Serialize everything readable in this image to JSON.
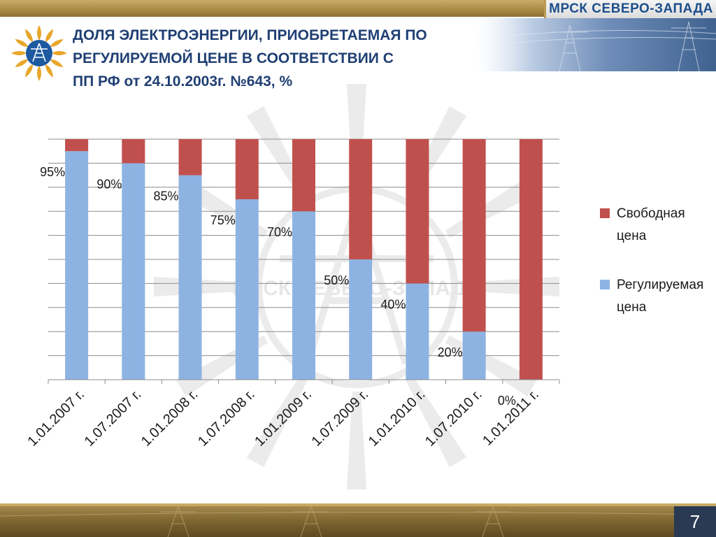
{
  "brand": {
    "name": "МРСК СЕВЕРО-ЗАПАДА"
  },
  "title": {
    "lines": [
      "ДОЛЯ ЭЛЕКТРОЭНЕРГИИ, ПРИОБРЕТАЕМАЯ  ПО",
      "РЕГУЛИРУЕМОЙ ЦЕНЕ В СООТВЕТСТВИИ С",
      "ПП РФ от 24.10.2003г. №643, %"
    ]
  },
  "watermark": {
    "text": "МРСК СЕВЕРО-ЗАПАДА"
  },
  "colors": {
    "regulated": "#8db3e2",
    "free": "#c0504d",
    "title": "#1f3f73",
    "brand": "#1d4f8c"
  },
  "chart_data": {
    "type": "bar",
    "stacked": true,
    "categories": [
      "1.01.2007 г.",
      "1.07.2007 г.",
      "1.01.2008 г.",
      "1.07.2008 г.",
      "1.01.2009 г.",
      "1.07.2009 г.",
      "1.01.2010 г.",
      "1.07.2010 г.",
      "1.01.2011 г."
    ],
    "series": [
      {
        "name": "Регулируемая цена",
        "values": [
          95,
          90,
          85,
          75,
          70,
          50,
          40,
          20,
          0
        ]
      },
      {
        "name": "Свободная цена",
        "values": [
          5,
          10,
          15,
          25,
          30,
          50,
          60,
          80,
          100
        ]
      }
    ],
    "data_labels": [
      "95%",
      "90%",
      "85%",
      "75%",
      "70%",
      "50%",
      "40%",
      "20%",
      "0%"
    ],
    "ylim": [
      0,
      100
    ],
    "grid": true,
    "legend": "right",
    "legend_entries": [
      "Свободная цена",
      "Регулируемая цена"
    ]
  },
  "footer": {
    "page_number": "7"
  }
}
